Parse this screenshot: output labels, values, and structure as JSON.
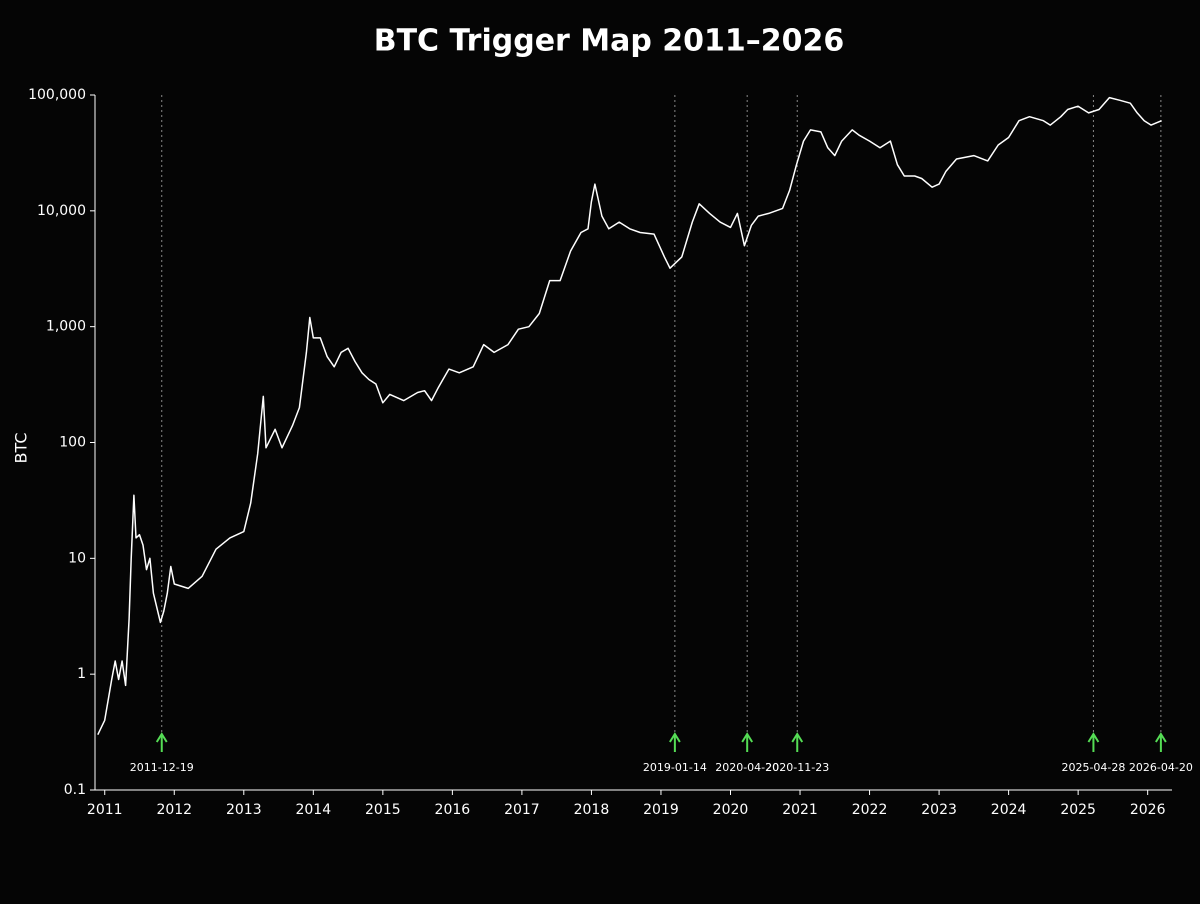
{
  "chart_data": {
    "type": "line",
    "title": "BTC Trigger Map 2011–2026",
    "y_label": "BTC",
    "yscale": "log",
    "grid": false,
    "color": "#ffffff",
    "background": "#050505",
    "marker_color": "#55dd55",
    "xlim": [
      2010.86,
      2026.35
    ],
    "xticks": [
      2011,
      2012,
      2013,
      2014,
      2015,
      2016,
      2017,
      2018,
      2019,
      2020,
      2021,
      2022,
      2023,
      2024,
      2025,
      2026
    ],
    "ylim": [
      0.1,
      100000
    ],
    "yticks": [
      0.1,
      1,
      10,
      100,
      {
        "value": 1000,
        "label": "1,000"
      },
      {
        "value": 10000,
        "label": "10,000"
      },
      {
        "value": 100000,
        "label": "100,000"
      }
    ],
    "x": [
      2010.9,
      2011.0,
      2011.1,
      2011.15,
      2011.2,
      2011.25,
      2011.3,
      2011.35,
      2011.38,
      2011.42,
      2011.45,
      2011.5,
      2011.55,
      2011.6,
      2011.65,
      2011.7,
      2011.8,
      2011.85,
      2011.9,
      2011.95,
      2012.0,
      2012.2,
      2012.4,
      2012.6,
      2012.8,
      2013.0,
      2013.1,
      2013.2,
      2013.28,
      2013.32,
      2013.45,
      2013.55,
      2013.7,
      2013.8,
      2013.9,
      2013.95,
      2014.0,
      2014.1,
      2014.2,
      2014.3,
      2014.4,
      2014.5,
      2014.6,
      2014.7,
      2014.8,
      2014.9,
      2015.0,
      2015.1,
      2015.3,
      2015.5,
      2015.6,
      2015.7,
      2015.8,
      2015.95,
      2016.1,
      2016.3,
      2016.45,
      2016.6,
      2016.8,
      2016.95,
      2017.1,
      2017.25,
      2017.4,
      2017.55,
      2017.7,
      2017.85,
      2017.95,
      2018.0,
      2018.05,
      2018.15,
      2018.25,
      2018.4,
      2018.55,
      2018.7,
      2018.9,
      2019.05,
      2019.13,
      2019.3,
      2019.45,
      2019.55,
      2019.7,
      2019.85,
      2020.0,
      2020.1,
      2020.2,
      2020.3,
      2020.4,
      2020.55,
      2020.75,
      2020.85,
      2020.95,
      2021.05,
      2021.15,
      2021.3,
      2021.4,
      2021.5,
      2021.6,
      2021.75,
      2021.85,
      2022.0,
      2022.15,
      2022.3,
      2022.4,
      2022.5,
      2022.65,
      2022.75,
      2022.9,
      2023.0,
      2023.1,
      2023.25,
      2023.5,
      2023.7,
      2023.85,
      2024.0,
      2024.15,
      2024.3,
      2024.5,
      2024.6,
      2024.75,
      2024.85,
      2025.0,
      2025.15,
      2025.3,
      2025.45,
      2025.6,
      2025.75,
      2025.85,
      2025.95,
      2026.05,
      2026.2
    ],
    "values": [
      0.3,
      0.4,
      0.9,
      1.3,
      0.9,
      1.3,
      0.8,
      3,
      10,
      35,
      15,
      16,
      13,
      8,
      10,
      5,
      2.8,
      3.5,
      5,
      8.5,
      6,
      5.5,
      7,
      12,
      15,
      17,
      30,
      80,
      250,
      90,
      130,
      90,
      140,
      200,
      600,
      1200,
      800,
      800,
      550,
      450,
      600,
      650,
      500,
      400,
      350,
      320,
      220,
      260,
      230,
      270,
      280,
      230,
      300,
      430,
      400,
      450,
      700,
      600,
      700,
      950,
      1000,
      1300,
      2500,
      2500,
      4500,
      6500,
      7000,
      12000,
      17000,
      9000,
      7000,
      8000,
      7000,
      6500,
      6300,
      4000,
      3200,
      4000,
      8000,
      11500,
      9500,
      8000,
      7200,
      9500,
      5000,
      7500,
      9000,
      9500,
      10500,
      15000,
      25000,
      40000,
      50000,
      48000,
      35000,
      30000,
      40000,
      50000,
      45000,
      40000,
      35000,
      40000,
      25000,
      20000,
      20000,
      19000,
      16000,
      17000,
      22000,
      28000,
      30000,
      27000,
      37000,
      43000,
      60000,
      65000,
      60000,
      55000,
      65000,
      75000,
      80000,
      70000,
      75000,
      95000,
      90000,
      85000,
      70000,
      60000,
      55000,
      60000
    ],
    "markers": [
      {
        "x": 2011.82,
        "label": "2011-12-19"
      },
      {
        "x": 2019.2,
        "label": "2019-01-14"
      },
      {
        "x": 2020.24,
        "label": "2020-04-20"
      },
      {
        "x": 2020.96,
        "label": "2020-11-23"
      },
      {
        "x": 2025.22,
        "label": "2025-04-28"
      },
      {
        "x": 2026.19,
        "label": "2026-04-20"
      }
    ]
  }
}
